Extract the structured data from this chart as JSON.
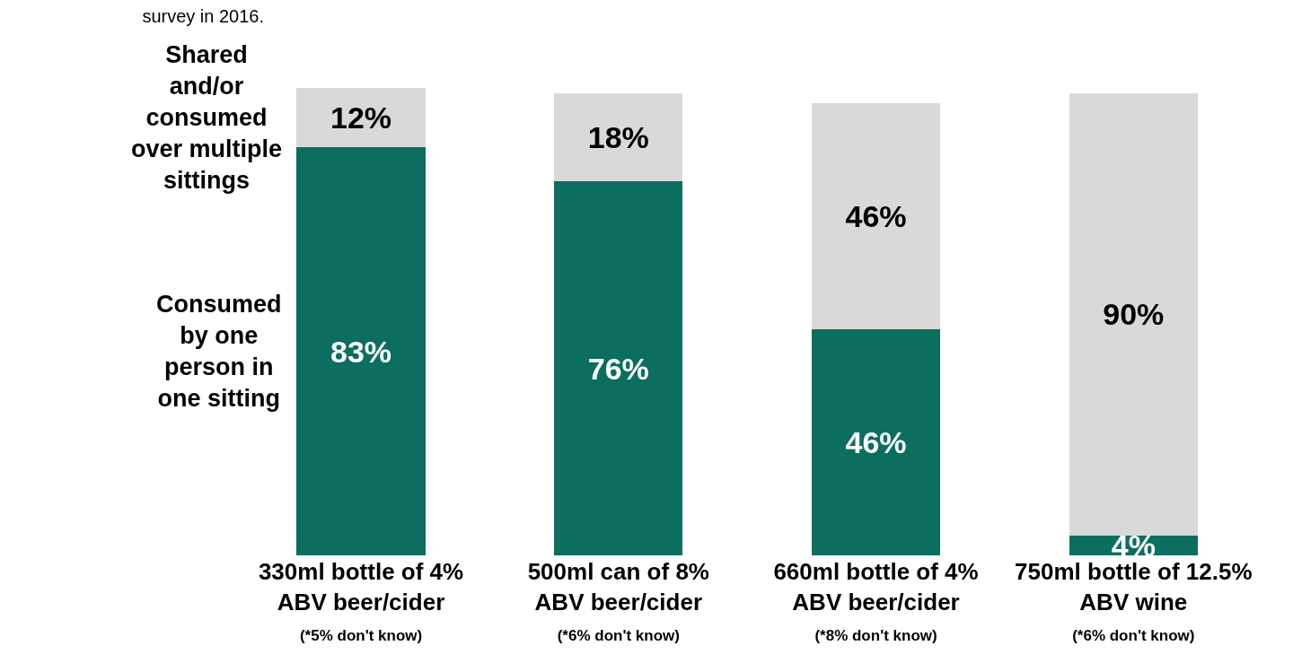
{
  "chart_data": {
    "type": "bar",
    "title": "survey in 2016.",
    "stacked": true,
    "legend": false,
    "tick_labels": "x",
    "categories": [
      "330ml bottle of 4%\nABV beer/cider\n(*5% don't know)",
      "500ml can of 8%\nABV beer/cider\n(*6% don't know)",
      "660ml bottle of 4%\nABV beer/cider\n(*8% don't know)",
      "750ml bottle of 12.5%\nABV wine\n(*6% don't know)"
    ],
    "series": [
      {
        "name": "Consumed\nby one\nperson in\none sitting",
        "color": "#0b6e5f",
        "values": [
          83,
          76,
          46,
          4
        ],
        "value_labels": [
          "83%",
          "76%",
          "46%",
          "4%"
        ]
      },
      {
        "name": "Shared\nand/or\nconsumed\nover multiple\nsittings",
        "color": "#d9d9d9",
        "values": [
          12,
          18,
          46,
          90
        ],
        "value_labels": [
          "12%",
          "18%",
          "46%",
          "90%"
        ]
      }
    ]
  }
}
